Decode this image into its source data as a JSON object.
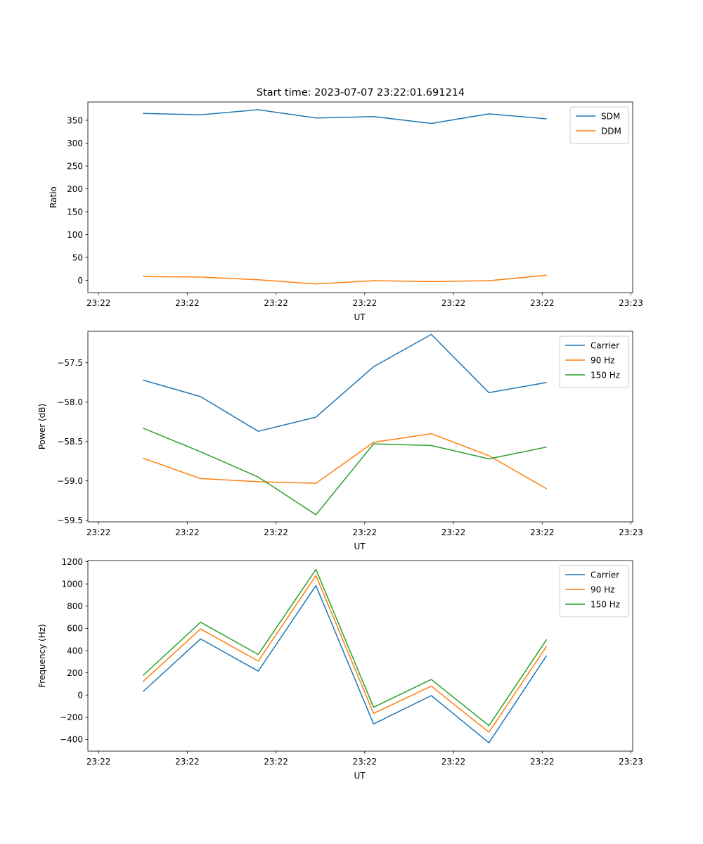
{
  "figure_title": "Start time: 2023-07-07 23:22:01.691214",
  "colors": {
    "blue": "#1f77b4",
    "orange": "#ff7f0e",
    "green": "#2ca02c",
    "axis": "#000000",
    "legend_border": "#cccccc"
  },
  "chart_data": [
    {
      "type": "line",
      "title": "Start time: 2023-07-07 23:22:01.691214",
      "xlabel": "UT",
      "ylabel": "Ratio",
      "xticklabels": [
        "23:22",
        "23:22",
        "23:22",
        "23:22",
        "23:22",
        "23:22",
        "23:23"
      ],
      "xticks": [
        0,
        1,
        2,
        3,
        4,
        5,
        6
      ],
      "xlim": [
        -0.12,
        6.02
      ],
      "yticks": [
        0,
        50,
        100,
        150,
        200,
        250,
        300,
        350
      ],
      "ylim": [
        -27,
        390
      ],
      "legend": "top-right",
      "series": [
        {
          "name": "SDM",
          "color": "#1f77b4",
          "x": [
            0.5,
            1.15,
            1.8,
            2.45,
            3.1,
            3.75,
            4.4,
            5.05
          ],
          "values": [
            365,
            362,
            373,
            355,
            358,
            343,
            364,
            353
          ]
        },
        {
          "name": "DDM",
          "color": "#ff7f0e",
          "x": [
            0.5,
            1.15,
            1.8,
            2.45,
            3.1,
            3.75,
            4.4,
            5.05
          ],
          "values": [
            8,
            7,
            1,
            -8,
            -1,
            -3,
            -1,
            11
          ]
        }
      ]
    },
    {
      "type": "line",
      "title": "",
      "xlabel": "UT",
      "ylabel": "Power (dB)",
      "xticklabels": [
        "23:22",
        "23:22",
        "23:22",
        "23:22",
        "23:22",
        "23:22",
        "23:23"
      ],
      "xticks": [
        0,
        1,
        2,
        3,
        4,
        5,
        6
      ],
      "xlim": [
        -0.12,
        6.02
      ],
      "yticks": [
        -59.5,
        -59.0,
        -58.5,
        -58.0,
        -57.5
      ],
      "yticklabels": [
        "−59.5",
        "−59.0",
        "−58.5",
        "−58.0",
        "−57.5"
      ],
      "ylim": [
        -59.52,
        -57.1
      ],
      "legend": "top-right",
      "series": [
        {
          "name": "Carrier",
          "color": "#1f77b4",
          "x": [
            0.5,
            1.15,
            1.8,
            2.45,
            3.1,
            3.75,
            4.4,
            5.05
          ],
          "values": [
            -57.72,
            -57.93,
            -58.37,
            -58.19,
            -57.55,
            -57.14,
            -57.88,
            -57.75
          ]
        },
        {
          "name": "90 Hz",
          "color": "#ff7f0e",
          "x": [
            0.5,
            1.15,
            1.8,
            2.45,
            3.1,
            3.75,
            4.4,
            5.05
          ],
          "values": [
            -58.71,
            -58.97,
            -59.01,
            -59.03,
            -58.51,
            -58.4,
            -58.68,
            -59.1
          ]
        },
        {
          "name": "150 Hz",
          "color": "#2ca02c",
          "x": [
            0.5,
            1.15,
            1.8,
            2.45,
            3.1,
            3.75,
            4.4,
            5.05
          ],
          "values": [
            -58.33,
            -58.63,
            -58.95,
            -59.43,
            -58.53,
            -58.55,
            -58.72,
            -58.57
          ]
        }
      ]
    },
    {
      "type": "line",
      "title": "",
      "xlabel": "UT",
      "ylabel": "Frequency (Hz)",
      "xticklabels": [
        "23:22",
        "23:22",
        "23:22",
        "23:22",
        "23:22",
        "23:22",
        "23:23"
      ],
      "xticks": [
        0,
        1,
        2,
        3,
        4,
        5,
        6
      ],
      "xlim": [
        -0.12,
        6.02
      ],
      "yticks": [
        -400,
        -200,
        0,
        200,
        400,
        600,
        800,
        1000,
        1200
      ],
      "yticklabels": [
        "−400",
        "−200",
        "0",
        "200",
        "400",
        "600",
        "800",
        "1000",
        "1200"
      ],
      "ylim": [
        -505,
        1210
      ],
      "legend": "top-right",
      "series": [
        {
          "name": "Carrier",
          "color": "#1f77b4",
          "x": [
            0.5,
            1.15,
            1.8,
            2.45,
            3.1,
            3.75,
            4.4,
            5.05
          ],
          "values": [
            30,
            505,
            215,
            985,
            -260,
            -5,
            -430,
            355
          ]
        },
        {
          "name": "90 Hz",
          "color": "#ff7f0e",
          "x": [
            0.5,
            1.15,
            1.8,
            2.45,
            3.1,
            3.75,
            4.4,
            5.05
          ],
          "values": [
            120,
            595,
            305,
            1075,
            -165,
            80,
            -335,
            440
          ]
        },
        {
          "name": "150 Hz",
          "color": "#2ca02c",
          "x": [
            0.5,
            1.15,
            1.8,
            2.45,
            3.1,
            3.75,
            4.4,
            5.05
          ],
          "values": [
            175,
            655,
            365,
            1130,
            -110,
            140,
            -275,
            500
          ]
        }
      ]
    }
  ]
}
